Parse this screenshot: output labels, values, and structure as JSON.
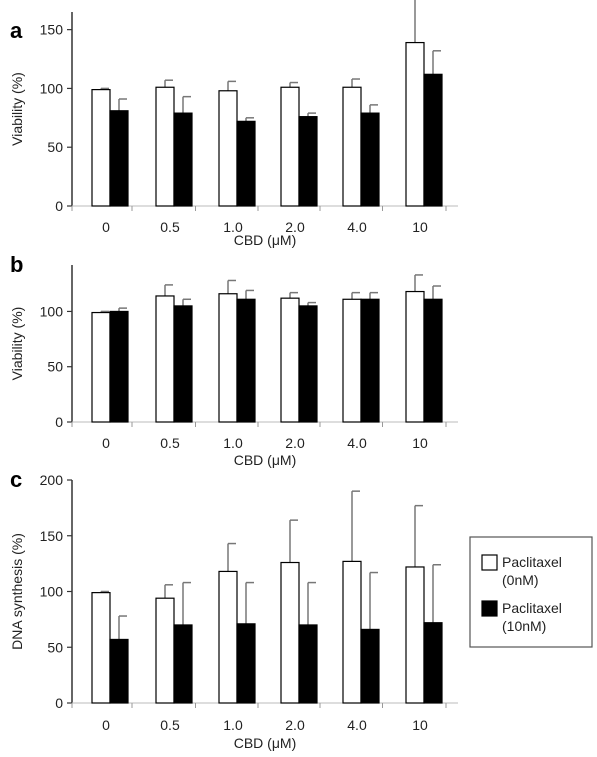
{
  "chart_data": [
    {
      "type": "bar",
      "panel": "a",
      "categories": [
        "0",
        "0.5",
        "1.0",
        "2.0",
        "4.0",
        "10"
      ],
      "series": [
        {
          "name": "Paclitaxel (0nM)",
          "values": [
            99,
            101,
            98,
            101,
            101,
            139
          ],
          "errors": [
            1,
            6,
            8,
            4,
            7,
            38
          ]
        },
        {
          "name": "Paclitaxel (10nM)",
          "values": [
            81,
            79,
            72,
            76,
            79,
            112
          ],
          "errors": [
            10,
            14,
            3,
            3,
            7,
            20
          ]
        }
      ],
      "title": "",
      "xlabel": "CBD (μM)",
      "ylabel": "Viability (%)",
      "ylim": [
        0,
        165
      ],
      "yticks": [
        "0",
        "50",
        "100",
        "150"
      ]
    },
    {
      "type": "bar",
      "panel": "b",
      "categories": [
        "0",
        "0.5",
        "1.0",
        "2.0",
        "4.0",
        "10"
      ],
      "series": [
        {
          "name": "Paclitaxel (0nM)",
          "values": [
            99,
            114,
            116,
            112,
            111,
            118
          ],
          "errors": [
            1,
            10,
            12,
            5,
            6,
            15
          ]
        },
        {
          "name": "Paclitaxel (10nM)",
          "values": [
            100,
            105,
            111,
            105,
            111,
            111
          ],
          "errors": [
            3,
            6,
            8,
            3,
            6,
            12
          ]
        }
      ],
      "title": "",
      "xlabel": "CBD (μM)",
      "ylabel": "Viability (%)",
      "ylim": [
        0,
        142
      ],
      "yticks": [
        "0",
        "50",
        "100"
      ]
    },
    {
      "type": "bar",
      "panel": "c",
      "categories": [
        "0",
        "0.5",
        "1.0",
        "2.0",
        "4.0",
        "10"
      ],
      "series": [
        {
          "name": "Paclitaxel (0nM)",
          "values": [
            99,
            94,
            118,
            126,
            127,
            122
          ],
          "errors": [
            1,
            12,
            25,
            38,
            63,
            55
          ]
        },
        {
          "name": "Paclitaxel (10nM)",
          "values": [
            57,
            70,
            71,
            70,
            66,
            72
          ],
          "errors": [
            21,
            38,
            37,
            38,
            51,
            52
          ]
        }
      ],
      "title": "",
      "xlabel": "CBD (μM)",
      "ylabel": "DNA synthesis (%)",
      "ylim": [
        0,
        200
      ],
      "yticks": [
        "0",
        "50",
        "100",
        "150",
        "200"
      ]
    }
  ],
  "legend": {
    "entries": [
      {
        "line1": "Paclitaxel",
        "line2": "(0nM)",
        "fill": "#ffffff"
      },
      {
        "line1": "Paclitaxel",
        "line2": "(10nM)",
        "fill": "#000000"
      }
    ]
  },
  "colors": {
    "open_bar": "#ffffff",
    "filled_bar": "#000000",
    "error_bar": "#777777",
    "axis": "#333333"
  }
}
